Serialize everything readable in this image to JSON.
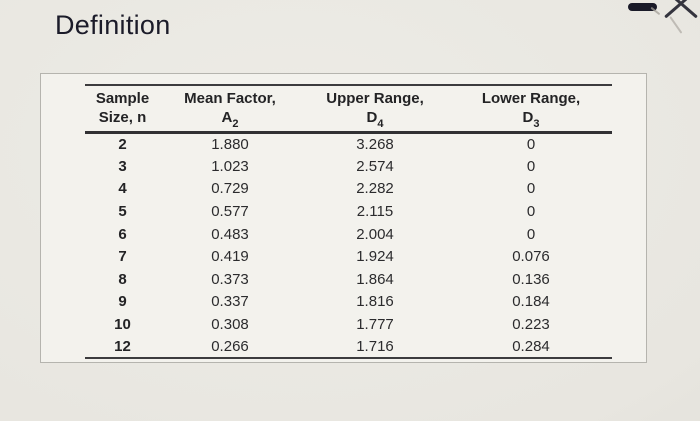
{
  "page": {
    "title": "Definition"
  },
  "window_controls": {
    "minimize_label": "minimize",
    "close_label": "close"
  },
  "colors": {
    "background": "#e8e6e0",
    "panel": "#f3f2ed",
    "panel_border": "#b5b4ae",
    "text": "#28282a",
    "rule": "#3c3c3e",
    "title": "#1b1b29"
  },
  "table": {
    "headers": [
      {
        "line1": "Sample",
        "line2": "Size, n"
      },
      {
        "line1": "Mean Factor,",
        "symbol": "A",
        "subscript": "2"
      },
      {
        "line1": "Upper Range,",
        "symbol": "D",
        "subscript": "4"
      },
      {
        "line1": "Lower Range,",
        "symbol": "D",
        "subscript": "3"
      }
    ],
    "rows": [
      {
        "n": "2",
        "a2": "1.880",
        "d4": "3.268",
        "d3": "0"
      },
      {
        "n": "3",
        "a2": "1.023",
        "d4": "2.574",
        "d3": "0"
      },
      {
        "n": "4",
        "a2": "0.729",
        "d4": "2.282",
        "d3": "0"
      },
      {
        "n": "5",
        "a2": "0.577",
        "d4": "2.115",
        "d3": "0"
      },
      {
        "n": "6",
        "a2": "0.483",
        "d4": "2.004",
        "d3": "0"
      },
      {
        "n": "7",
        "a2": "0.419",
        "d4": "1.924",
        "d3": "0.076"
      },
      {
        "n": "8",
        "a2": "0.373",
        "d4": "1.864",
        "d3": "0.136"
      },
      {
        "n": "9",
        "a2": "0.337",
        "d4": "1.816",
        "d3": "0.184"
      },
      {
        "n": "10",
        "a2": "0.308",
        "d4": "1.777",
        "d3": "0.223"
      },
      {
        "n": "12",
        "a2": "0.266",
        "d4": "1.716",
        "d3": "0.284"
      }
    ]
  }
}
